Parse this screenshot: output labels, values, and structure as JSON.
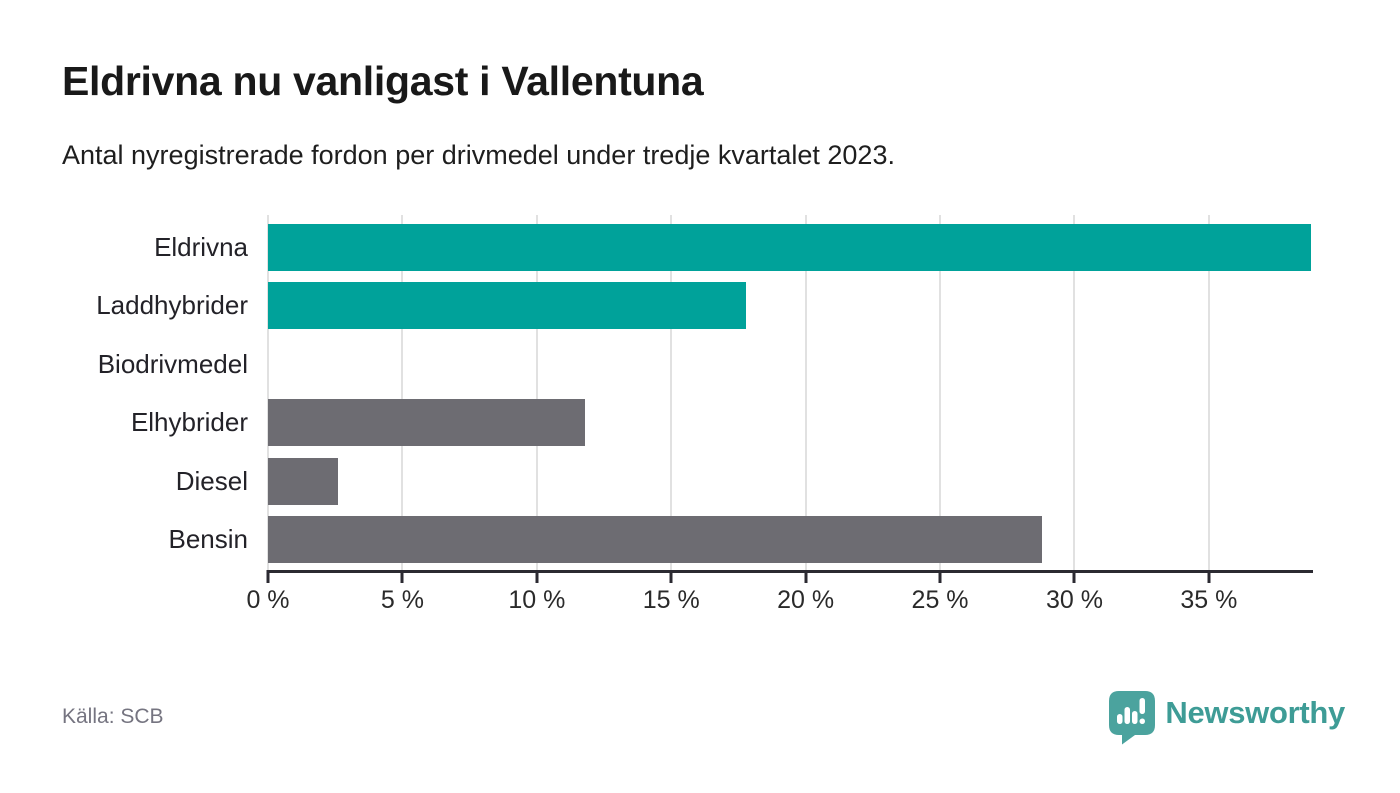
{
  "header": {
    "title": "Eldrivna nu vanligast i Vallentuna",
    "subtitle": "Antal nyregistrerade fordon per drivmedel under tredje kvartalet 2023."
  },
  "chart_data": {
    "type": "bar",
    "orientation": "horizontal",
    "title": "Eldrivna nu vanligast i Vallentuna",
    "subtitle": "Antal nyregistrerade fordon per drivmedel under tredje kvartalet 2023.",
    "unit": "%",
    "categories": [
      "Eldrivna",
      "Laddhybrider",
      "Biodrivmedel",
      "Elhybrider",
      "Diesel",
      "Bensin"
    ],
    "values": [
      38.8,
      17.8,
      0,
      11.8,
      2.6,
      28.8
    ],
    "bar_colors": [
      "#00a29a",
      "#00a29a",
      "#6d6c72",
      "#6d6c72",
      "#6d6c72",
      "#6d6c72"
    ],
    "xlim": [
      0,
      38.8
    ],
    "xticks": [
      0,
      5,
      10,
      15,
      20,
      25,
      30,
      35
    ],
    "xtick_labels": [
      "0 %",
      "5 %",
      "10 %",
      "15 %",
      "20 %",
      "25 %",
      "30 %",
      "35 %"
    ],
    "grid": true,
    "legend": false
  },
  "footer": {
    "source": "Källa: SCB",
    "brand": "Newsworthy"
  },
  "colors": {
    "bar_teal": "#00a29a",
    "bar_gray": "#6d6c72",
    "gridline": "#e1e1e1",
    "axis": "#2b2a31",
    "brand_icon_teal": "#4ba39e",
    "brand_text_teal": "#3e9c96"
  }
}
